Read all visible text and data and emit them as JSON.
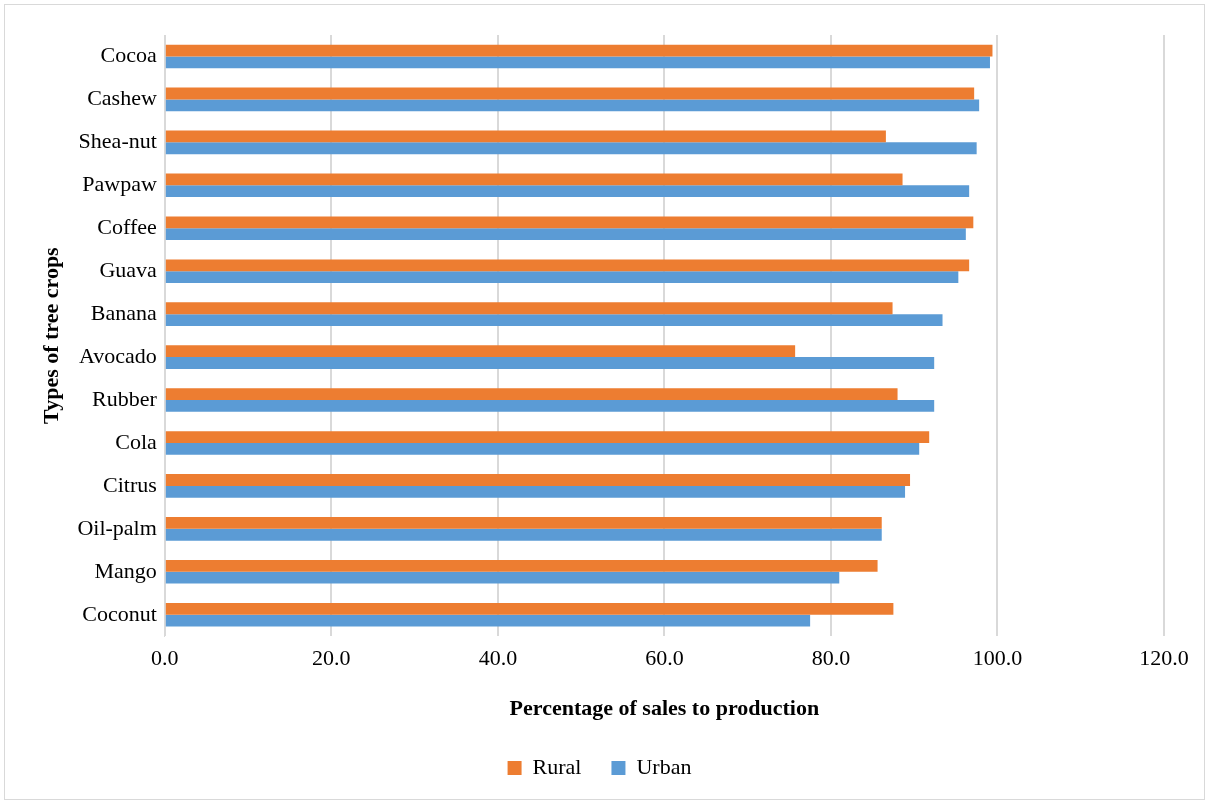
{
  "chart_data": {
    "type": "bar",
    "orientation": "horizontal",
    "xlabel": "Percentage of sales to production",
    "ylabel": "Types of tree crops",
    "categories": [
      "Cocoa",
      "Cashew",
      "Shea-nut",
      "Pawpaw",
      "Coffee",
      "Guava",
      "Banana",
      "Avocado",
      "Rubber",
      "Cola",
      "Citrus",
      "Oil-palm",
      "Mango",
      "Coconut"
    ],
    "series": [
      {
        "name": "Rural",
        "color": "#ed7d31",
        "values": [
          99.4,
          97.2,
          86.6,
          88.6,
          97.1,
          96.6,
          87.4,
          75.7,
          88.0,
          91.8,
          89.5,
          86.1,
          85.6,
          87.5
        ]
      },
      {
        "name": "Urban",
        "color": "#5b9bd5",
        "values": [
          99.1,
          97.8,
          97.5,
          96.6,
          96.2,
          95.3,
          93.4,
          92.4,
          92.4,
          90.6,
          88.9,
          86.1,
          81.0,
          77.5
        ]
      }
    ],
    "xlim": [
      0,
      120
    ],
    "xticks": [
      {
        "value": 0,
        "label": "0.0"
      },
      {
        "value": 20,
        "label": "20.0"
      },
      {
        "value": 40,
        "label": "40.0"
      },
      {
        "value": 60,
        "label": "60.0"
      },
      {
        "value": 80,
        "label": "80.0"
      },
      {
        "value": 100,
        "label": "100.0"
      },
      {
        "value": 120,
        "label": "120.0"
      }
    ],
    "grid": "x",
    "legend": "bottom"
  }
}
